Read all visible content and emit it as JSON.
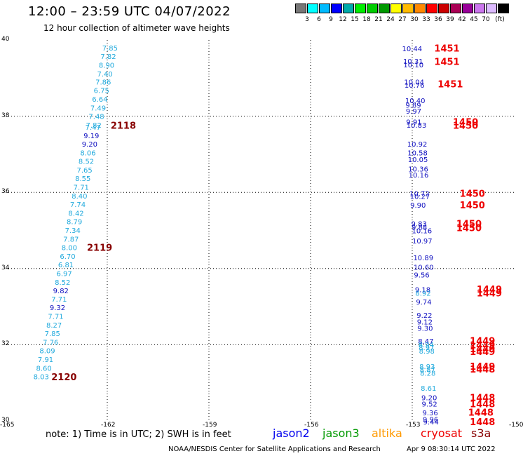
{
  "chart_data": {
    "type": "scatter",
    "title": "12:00 – 23:59 UTC 04/07/2022",
    "subtitle": "12 hour collection of altimeter wave heights",
    "xlim": [
      -165,
      -150
    ],
    "ylim": [
      30,
      40
    ],
    "x_ticks": [
      "-165",
      "-162",
      "-159",
      "-156",
      "-153",
      "-150"
    ],
    "y_ticks": [
      "40",
      "38",
      "36",
      "34",
      "32",
      "30"
    ],
    "grid": true,
    "colors": {
      "light": "#22aadd",
      "dark": "#1010c0",
      "time": "#ee0000",
      "time_dark": "#880000"
    },
    "legend_scale": {
      "colors": [
        "#777777",
        "#00ffff",
        "#00bbff",
        "#0000ff",
        "#00aaaa",
        "#00ee00",
        "#00cc00",
        "#009900",
        "#ffff00",
        "#ffbb00",
        "#ff8800",
        "#ff0000",
        "#cc0000",
        "#aa0055",
        "#990099",
        "#cc77ee",
        "#ddbbff",
        "#000000"
      ],
      "labels": [
        "3",
        "6",
        "9",
        "12",
        "15",
        "18",
        "21",
        "24",
        "27",
        "30",
        "33",
        "36",
        "39",
        "42",
        "45",
        "70",
        "(ft)"
      ]
    },
    "series": [
      {
        "points": [
          {
            "lon": -162.15,
            "lat": 39.8,
            "v": "7.85",
            "c": "light"
          },
          {
            "lon": -162.2,
            "lat": 39.58,
            "v": "7.82",
            "c": "light"
          },
          {
            "lon": -162.25,
            "lat": 39.35,
            "v": "8.90",
            "c": "light"
          },
          {
            "lon": -162.3,
            "lat": 39.12,
            "v": "7.40",
            "c": "light"
          },
          {
            "lon": -162.35,
            "lat": 38.9,
            "v": "7.86",
            "c": "light"
          },
          {
            "lon": -162.4,
            "lat": 38.68,
            "v": "6.75",
            "c": "light"
          },
          {
            "lon": -162.45,
            "lat": 38.45,
            "v": "6.64",
            "c": "light"
          },
          {
            "lon": -162.5,
            "lat": 38.22,
            "v": "7.49",
            "c": "light"
          },
          {
            "lon": -162.55,
            "lat": 38.0,
            "v": "7.48",
            "c": "light"
          },
          {
            "lon": -162.63,
            "lat": 37.77,
            "v": "7.82",
            "c": "light"
          },
          {
            "lon": -162.65,
            "lat": 37.72,
            "v": "7.47",
            "c": "light"
          },
          {
            "lon": -162.7,
            "lat": 37.5,
            "v": "9.19",
            "c": "dark"
          },
          {
            "lon": -162.75,
            "lat": 37.27,
            "v": "9.20",
            "c": "dark"
          },
          {
            "lon": -162.8,
            "lat": 37.04,
            "v": "8.06",
            "c": "light"
          },
          {
            "lon": -162.85,
            "lat": 36.82,
            "v": "8.52",
            "c": "light"
          },
          {
            "lon": -162.9,
            "lat": 36.59,
            "v": "7.65",
            "c": "light"
          },
          {
            "lon": -162.95,
            "lat": 36.37,
            "v": "8.55",
            "c": "light"
          },
          {
            "lon": -163.0,
            "lat": 36.14,
            "v": "7.71",
            "c": "light"
          },
          {
            "lon": -163.05,
            "lat": 35.91,
            "v": "8.40",
            "c": "light"
          },
          {
            "lon": -163.1,
            "lat": 35.69,
            "v": "7.74",
            "c": "light"
          },
          {
            "lon": -163.15,
            "lat": 35.46,
            "v": "8.42",
            "c": "light"
          },
          {
            "lon": -163.2,
            "lat": 35.24,
            "v": "8.79",
            "c": "light"
          },
          {
            "lon": -163.25,
            "lat": 35.01,
            "v": "7.34",
            "c": "light"
          },
          {
            "lon": -163.3,
            "lat": 34.78,
            "v": "7.87",
            "c": "light"
          },
          {
            "lon": -163.35,
            "lat": 34.56,
            "v": "8.00",
            "c": "light"
          },
          {
            "lon": -163.4,
            "lat": 34.33,
            "v": "6.70",
            "c": "light"
          },
          {
            "lon": -163.45,
            "lat": 34.11,
            "v": "6.81",
            "c": "light"
          },
          {
            "lon": -163.5,
            "lat": 33.88,
            "v": "6.97",
            "c": "light"
          },
          {
            "lon": -163.55,
            "lat": 33.65,
            "v": "8.52",
            "c": "light"
          },
          {
            "lon": -163.6,
            "lat": 33.43,
            "v": "9.82",
            "c": "dark"
          },
          {
            "lon": -163.65,
            "lat": 33.2,
            "v": "7.71",
            "c": "light"
          },
          {
            "lon": -163.7,
            "lat": 32.98,
            "v": "9.32",
            "c": "dark"
          },
          {
            "lon": -163.75,
            "lat": 32.75,
            "v": "7.71",
            "c": "light"
          },
          {
            "lon": -163.8,
            "lat": 32.52,
            "v": "8.27",
            "c": "light"
          },
          {
            "lon": -163.85,
            "lat": 32.3,
            "v": "7.85",
            "c": "light"
          },
          {
            "lon": -163.9,
            "lat": 32.07,
            "v": "7.76",
            "c": "light"
          },
          {
            "lon": -164.0,
            "lat": 31.85,
            "v": "8.09",
            "c": "light"
          },
          {
            "lon": -164.05,
            "lat": 31.62,
            "v": "7.91",
            "c": "light"
          },
          {
            "lon": -164.1,
            "lat": 31.39,
            "v": "8.60",
            "c": "light"
          },
          {
            "lon": -164.18,
            "lat": 31.17,
            "v": "8.03",
            "c": "light"
          },
          {
            "lon": -153.3,
            "lat": 39.78,
            "v": "10.44",
            "c": "dark"
          },
          {
            "lon": -153.27,
            "lat": 39.45,
            "v": "10.31",
            "c": "dark"
          },
          {
            "lon": -153.26,
            "lat": 39.36,
            "v": "10.10",
            "c": "dark"
          },
          {
            "lon": -153.24,
            "lat": 38.9,
            "v": "10.04",
            "c": "dark"
          },
          {
            "lon": -153.23,
            "lat": 38.82,
            "v": "10.76",
            "c": "dark"
          },
          {
            "lon": -153.21,
            "lat": 38.42,
            "v": "10.40",
            "c": "dark"
          },
          {
            "lon": -153.2,
            "lat": 38.3,
            "v": "9.89",
            "c": "dark"
          },
          {
            "lon": -153.19,
            "lat": 38.14,
            "v": "9.97",
            "c": "dark"
          },
          {
            "lon": -153.18,
            "lat": 37.85,
            "v": "9.91",
            "c": "dark"
          },
          {
            "lon": -153.17,
            "lat": 37.77,
            "v": "10.83",
            "c": "dark"
          },
          {
            "lon": -153.15,
            "lat": 37.27,
            "v": "10.92",
            "c": "dark"
          },
          {
            "lon": -153.14,
            "lat": 37.04,
            "v": "10.58",
            "c": "dark"
          },
          {
            "lon": -153.13,
            "lat": 36.87,
            "v": "10.05",
            "c": "dark"
          },
          {
            "lon": -153.12,
            "lat": 36.62,
            "v": "10.36",
            "c": "dark"
          },
          {
            "lon": -153.11,
            "lat": 36.46,
            "v": "10.16",
            "c": "dark"
          },
          {
            "lon": -153.08,
            "lat": 35.98,
            "v": "10.72",
            "c": "dark"
          },
          {
            "lon": -153.07,
            "lat": 35.9,
            "v": "10.27",
            "c": "dark"
          },
          {
            "lon": -153.06,
            "lat": 35.67,
            "v": "9.90",
            "c": "dark"
          },
          {
            "lon": -153.03,
            "lat": 35.18,
            "v": "9.83",
            "c": "dark"
          },
          {
            "lon": -153.02,
            "lat": 35.09,
            "v": "9.88",
            "c": "dark"
          },
          {
            "lon": -153.01,
            "lat": 35.0,
            "v": "10.16",
            "c": "dark"
          },
          {
            "lon": -153.0,
            "lat": 34.73,
            "v": "10.97",
            "c": "dark"
          },
          {
            "lon": -152.97,
            "lat": 34.29,
            "v": "10.89",
            "c": "dark"
          },
          {
            "lon": -152.96,
            "lat": 34.04,
            "v": "10.60",
            "c": "dark"
          },
          {
            "lon": -152.95,
            "lat": 33.84,
            "v": "9.56",
            "c": "dark"
          },
          {
            "lon": -152.92,
            "lat": 33.45,
            "v": "9.18",
            "c": "dark"
          },
          {
            "lon": -152.91,
            "lat": 33.36,
            "v": "8.92",
            "c": "light"
          },
          {
            "lon": -152.89,
            "lat": 33.13,
            "v": "9.74",
            "c": "dark"
          },
          {
            "lon": -152.87,
            "lat": 32.78,
            "v": "9.22",
            "c": "dark"
          },
          {
            "lon": -152.86,
            "lat": 32.61,
            "v": "9.12",
            "c": "dark"
          },
          {
            "lon": -152.85,
            "lat": 32.44,
            "v": "9.30",
            "c": "dark"
          },
          {
            "lon": -152.83,
            "lat": 32.1,
            "v": "8.47",
            "c": "dark"
          },
          {
            "lon": -152.82,
            "lat": 32.01,
            "v": "8.94",
            "c": "light"
          },
          {
            "lon": -152.81,
            "lat": 31.93,
            "v": "8.97",
            "c": "light"
          },
          {
            "lon": -152.8,
            "lat": 31.84,
            "v": "8.98",
            "c": "light"
          },
          {
            "lon": -152.79,
            "lat": 31.44,
            "v": "8.93",
            "c": "light"
          },
          {
            "lon": -152.78,
            "lat": 31.35,
            "v": "8.87",
            "c": "light"
          },
          {
            "lon": -152.77,
            "lat": 31.26,
            "v": "8.28",
            "c": "light"
          },
          {
            "lon": -152.75,
            "lat": 30.87,
            "v": "8.61",
            "c": "light"
          },
          {
            "lon": -152.73,
            "lat": 30.62,
            "v": "9.20",
            "c": "dark"
          },
          {
            "lon": -152.72,
            "lat": 30.45,
            "v": "9.52",
            "c": "dark"
          },
          {
            "lon": -152.7,
            "lat": 30.22,
            "v": "9.36",
            "c": "dark"
          },
          {
            "lon": -152.69,
            "lat": 30.05,
            "v": "9.96",
            "c": "dark"
          },
          {
            "lon": -152.68,
            "lat": 29.98,
            "v": "9.44",
            "c": "dark"
          }
        ]
      }
    ],
    "time_labels": [
      {
        "lon": -161.9,
        "lat": 37.76,
        "t": "2118",
        "c": "time_dark"
      },
      {
        "lon": -162.6,
        "lat": 34.56,
        "t": "2119",
        "c": "time_dark"
      },
      {
        "lon": -163.65,
        "lat": 31.16,
        "t": "2120",
        "c": "time_dark"
      },
      {
        "lon": -152.35,
        "lat": 39.79,
        "t": "1451",
        "c": "time"
      },
      {
        "lon": -152.35,
        "lat": 39.44,
        "t": "1451",
        "c": "time"
      },
      {
        "lon": -152.25,
        "lat": 38.85,
        "t": "1451",
        "c": "time"
      },
      {
        "lon": -151.8,
        "lat": 37.85,
        "t": "1450",
        "c": "time"
      },
      {
        "lon": -151.8,
        "lat": 37.76,
        "t": "1450",
        "c": "time"
      },
      {
        "lon": -151.6,
        "lat": 35.98,
        "t": "1450",
        "c": "time"
      },
      {
        "lon": -151.6,
        "lat": 35.67,
        "t": "1450",
        "c": "time"
      },
      {
        "lon": -151.7,
        "lat": 35.18,
        "t": "1450",
        "c": "time"
      },
      {
        "lon": -151.7,
        "lat": 35.07,
        "t": "1450",
        "c": "time"
      },
      {
        "lon": -151.1,
        "lat": 33.46,
        "t": "1449",
        "c": "time"
      },
      {
        "lon": -151.1,
        "lat": 33.36,
        "t": "1449",
        "c": "time"
      },
      {
        "lon": -151.3,
        "lat": 32.11,
        "t": "1449",
        "c": "time"
      },
      {
        "lon": -151.3,
        "lat": 32.0,
        "t": "1449",
        "c": "time"
      },
      {
        "lon": -151.3,
        "lat": 31.9,
        "t": "1449",
        "c": "time"
      },
      {
        "lon": -151.3,
        "lat": 31.82,
        "t": "1449",
        "c": "time"
      },
      {
        "lon": -151.3,
        "lat": 31.44,
        "t": "1449",
        "c": "time"
      },
      {
        "lon": -151.3,
        "lat": 31.36,
        "t": "1448",
        "c": "time"
      },
      {
        "lon": -151.3,
        "lat": 30.62,
        "t": "1448",
        "c": "time"
      },
      {
        "lon": -151.3,
        "lat": 30.45,
        "t": "1448",
        "c": "time"
      },
      {
        "lon": -151.35,
        "lat": 30.23,
        "t": "1448",
        "c": "time"
      },
      {
        "lon": -151.3,
        "lat": 29.98,
        "t": "1448",
        "c": "time"
      }
    ]
  },
  "note": "note: 1) Time is in UTC; 2) SWH is in feet",
  "satellites": [
    {
      "name": "jason2",
      "color": "#0000ee"
    },
    {
      "name": "jason3",
      "color": "#009900"
    },
    {
      "name": "altika",
      "color": "#ff9900"
    },
    {
      "name": "cryosat",
      "color": "#ee0000"
    },
    {
      "name": "s3a",
      "color": "#880000"
    }
  ],
  "footer_left": "NOAA/NESDIS Center for Satellite Applications and Research",
  "footer_right": "Apr  9 08:30:14 UTC 2022"
}
